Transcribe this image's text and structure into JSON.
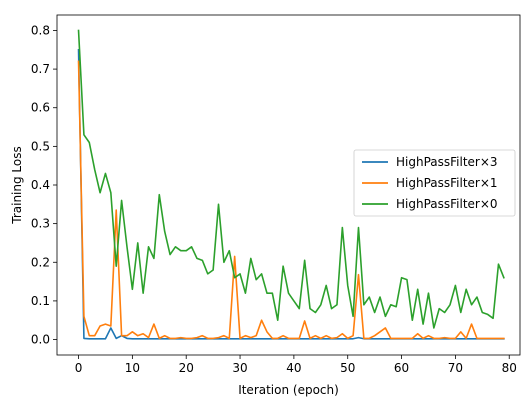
{
  "chart_data": {
    "type": "line",
    "title": "",
    "xlabel": "Iteration (epoch)",
    "ylabel": "Training Loss",
    "xlim": [
      -4,
      82
    ],
    "ylim": [
      -0.04,
      0.84
    ],
    "xticks": [
      0,
      10,
      20,
      30,
      40,
      50,
      60,
      70,
      80
    ],
    "yticks": [
      0.0,
      0.1,
      0.2,
      0.3,
      0.4,
      0.5,
      0.6,
      0.7,
      0.8
    ],
    "grid": false,
    "legend_position": "right",
    "x": [
      0,
      1,
      2,
      3,
      4,
      5,
      6,
      7,
      8,
      9,
      10,
      11,
      12,
      13,
      14,
      15,
      16,
      17,
      18,
      19,
      20,
      21,
      22,
      23,
      24,
      25,
      26,
      27,
      28,
      29,
      30,
      31,
      32,
      33,
      34,
      35,
      36,
      37,
      38,
      39,
      40,
      41,
      42,
      43,
      44,
      45,
      46,
      47,
      48,
      49,
      50,
      51,
      52,
      53,
      54,
      55,
      56,
      57,
      58,
      59,
      60,
      61,
      62,
      63,
      64,
      65,
      66,
      67,
      68,
      69,
      70,
      71,
      72,
      73,
      74,
      75,
      76,
      77,
      78,
      79
    ],
    "series": [
      {
        "name": "HighPassFilter×3",
        "color": "#1f77b4",
        "values": [
          0.75,
          0.003,
          0.002,
          0.002,
          0.002,
          0.002,
          0.03,
          0.003,
          0.01,
          0.003,
          0.002,
          0.002,
          0.002,
          0.002,
          0.002,
          0.002,
          0.002,
          0.002,
          0.002,
          0.002,
          0.002,
          0.002,
          0.002,
          0.002,
          0.002,
          0.002,
          0.002,
          0.002,
          0.002,
          0.002,
          0.002,
          0.002,
          0.002,
          0.002,
          0.002,
          0.002,
          0.002,
          0.002,
          0.002,
          0.002,
          0.002,
          0.002,
          0.002,
          0.002,
          0.002,
          0.002,
          0.002,
          0.002,
          0.002,
          0.002,
          0.002,
          0.002,
          0.005,
          0.002,
          0.002,
          0.002,
          0.002,
          0.002,
          0.002,
          0.002,
          0.002,
          0.002,
          0.002,
          0.002,
          0.002,
          0.002,
          0.002,
          0.002,
          0.002,
          0.002,
          0.002,
          0.002,
          0.002,
          0.002,
          0.002,
          0.002,
          0.002,
          0.002,
          0.002,
          0.002
        ]
      },
      {
        "name": "HighPassFilter×1",
        "color": "#ff7f0e",
        "values": [
          0.72,
          0.06,
          0.01,
          0.01,
          0.035,
          0.04,
          0.035,
          0.335,
          0.01,
          0.01,
          0.02,
          0.01,
          0.015,
          0.005,
          0.04,
          0.003,
          0.01,
          0.003,
          0.003,
          0.005,
          0.003,
          0.003,
          0.005,
          0.01,
          0.003,
          0.003,
          0.005,
          0.01,
          0.003,
          0.215,
          0.003,
          0.01,
          0.005,
          0.01,
          0.05,
          0.02,
          0.003,
          0.003,
          0.01,
          0.003,
          0.003,
          0.003,
          0.048,
          0.003,
          0.01,
          0.003,
          0.01,
          0.003,
          0.005,
          0.015,
          0.003,
          0.01,
          0.168,
          0.003,
          0.003,
          0.01,
          0.02,
          0.03,
          0.003,
          0.003,
          0.003,
          0.003,
          0.003,
          0.015,
          0.003,
          0.01,
          0.003,
          0.003,
          0.005,
          0.003,
          0.003,
          0.02,
          0.003,
          0.04,
          0.003,
          0.003,
          0.003,
          0.003,
          0.003,
          0.003
        ]
      },
      {
        "name": "HighPassFilter×0",
        "color": "#2ca02c",
        "values": [
          0.8,
          0.53,
          0.51,
          0.44,
          0.38,
          0.43,
          0.38,
          0.19,
          0.36,
          0.24,
          0.13,
          0.25,
          0.12,
          0.24,
          0.21,
          0.375,
          0.28,
          0.22,
          0.24,
          0.23,
          0.23,
          0.24,
          0.21,
          0.205,
          0.17,
          0.18,
          0.35,
          0.2,
          0.23,
          0.16,
          0.17,
          0.12,
          0.21,
          0.155,
          0.17,
          0.12,
          0.12,
          0.05,
          0.19,
          0.12,
          0.1,
          0.08,
          0.205,
          0.08,
          0.07,
          0.09,
          0.14,
          0.08,
          0.09,
          0.29,
          0.14,
          0.06,
          0.29,
          0.09,
          0.11,
          0.07,
          0.11,
          0.06,
          0.09,
          0.085,
          0.16,
          0.155,
          0.05,
          0.13,
          0.04,
          0.12,
          0.03,
          0.08,
          0.07,
          0.09,
          0.14,
          0.07,
          0.13,
          0.09,
          0.11,
          0.07,
          0.065,
          0.055,
          0.195,
          0.16
        ]
      }
    ]
  }
}
